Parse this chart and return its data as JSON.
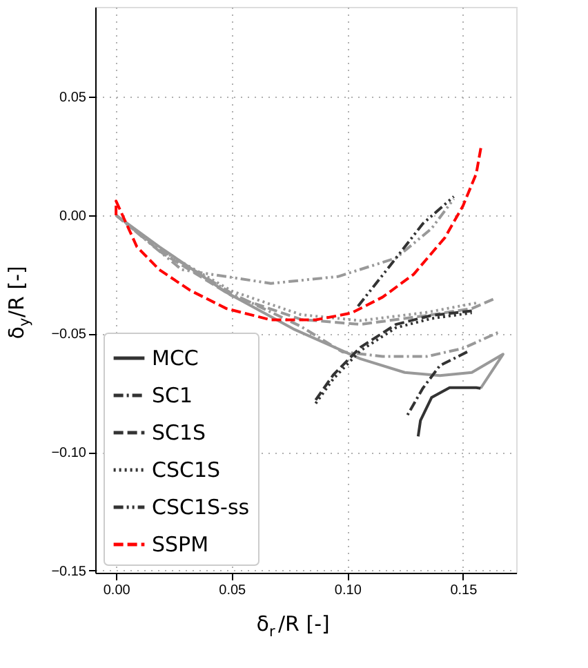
{
  "chart_data": {
    "type": "line",
    "xlabel": "δ$_{r}$/R [-]",
    "ylabel": "δ$_{y}$/R [-]",
    "xlim": [
      -0.009,
      0.173
    ],
    "ylim": [
      -0.151,
      0.088
    ],
    "xticks": [
      {
        "value": 0.0,
        "label": "0.00"
      },
      0.05,
      {
        "value": 0.1,
        "label": "0.10"
      },
      0.15
    ],
    "yticks": [
      {
        "value": -0.15,
        "label": "−0.15"
      },
      {
        "value": -0.1,
        "label": "−0.10"
      },
      {
        "value": -0.05,
        "label": "−0.05"
      },
      {
        "value": 0.0,
        "label": "0.00"
      },
      0.05
    ],
    "grid": true,
    "legend": "bottom left",
    "marker": "none",
    "series": [
      {
        "color": "#999999",
        "line_style": "solid",
        "x": [
          0.0,
          0.0187,
          0.0477,
          0.0766,
          0.1056,
          0.1248,
          0.14,
          0.1538,
          0.1673,
          0.1576
        ],
        "values": [
          0.0,
          -0.0133,
          -0.0326,
          -0.048,
          -0.0606,
          -0.0664,
          -0.0677,
          -0.0664,
          -0.0587,
          -0.0731
        ]
      },
      {
        "color": "#999999",
        "line_style": "dashdot",
        "x": [
          0.0,
          0.02,
          0.05,
          0.08,
          0.0978,
          0.1152,
          0.1345,
          0.15,
          0.1663
        ],
        "values": [
          0.0,
          -0.015,
          -0.033,
          -0.047,
          -0.0577,
          -0.0596,
          -0.0596,
          -0.0562,
          -0.049
        ]
      },
      {
        "color": "#999999",
        "line_style": "dashed",
        "x": [
          0.0,
          0.02,
          0.05,
          0.08,
          0.1056,
          0.1345,
          0.1538,
          0.1644
        ],
        "values": [
          0.0,
          -0.016,
          -0.034,
          -0.044,
          -0.0461,
          -0.0423,
          -0.0394,
          -0.0349
        ]
      },
      {
        "color": "#999999",
        "line_style": "dotted",
        "x": [
          0.0,
          0.02,
          0.05,
          0.08,
          0.1056,
          0.1345,
          0.156
        ],
        "values": [
          0.0,
          -0.015,
          -0.032,
          -0.042,
          -0.0445,
          -0.041,
          -0.037
        ]
      },
      {
        "color": "#999999",
        "line_style": "dashdotdot",
        "x": [
          0.0,
          0.0284,
          0.0669,
          0.0959,
          0.121,
          0.1364,
          0.146
        ],
        "values": [
          0.0,
          -0.023,
          -0.0288,
          -0.0259,
          -0.0181,
          -0.0056,
          0.0069
        ]
      },
      {
        "name": "MCC",
        "color": "#333333",
        "line_style": "solid",
        "x": [
          0.1576,
          0.1557,
          0.1442,
          0.1364,
          0.1316,
          0.1306
        ],
        "values": [
          -0.0731,
          -0.0728,
          -0.0728,
          -0.077,
          -0.0867,
          -0.0934
        ]
      },
      {
        "name": "SC1",
        "color": "#333333",
        "line_style": "dashdot",
        "x": [
          0.1518,
          0.14,
          0.1326,
          0.1258
        ],
        "values": [
          -0.0577,
          -0.0635,
          -0.0731,
          -0.0847
        ]
      },
      {
        "name": "SC1S",
        "color": "#333333",
        "line_style": "dashed",
        "x": [
          0.0863,
          0.094,
          0.1056,
          0.121,
          0.1364,
          0.1538
        ],
        "values": [
          -0.078,
          -0.0673,
          -0.0558,
          -0.0461,
          -0.0423,
          -0.0404
        ]
      },
      {
        "name": "CSC1S",
        "color": "#333333",
        "line_style": "dotted",
        "x": [
          0.0863,
          0.094,
          0.1056,
          0.121,
          0.1364,
          0.1538
        ],
        "values": [
          -0.0795,
          -0.069,
          -0.0572,
          -0.0475,
          -0.0436,
          -0.0412
        ]
      },
      {
        "name": "CSC1S-ss",
        "color": "#333333",
        "line_style": "dashdotdot",
        "x": [
          0.1046,
          0.1171,
          0.1326,
          0.146
        ],
        "values": [
          -0.0384,
          -0.023,
          -0.0036,
          0.0079
        ]
      },
      {
        "name": "SSPM",
        "color": "#ff0000",
        "line_style": "dashed",
        "x": [
          0.0,
          0.0,
          0.009,
          0.0187,
          0.032,
          0.0477,
          0.0669,
          0.0863,
          0.1017,
          0.1152,
          0.1287,
          0.1422,
          0.15,
          0.1557,
          0.158
        ],
        "values": [
          0.0,
          0.006,
          -0.0133,
          -0.023,
          -0.0317,
          -0.0394,
          -0.0442,
          -0.0442,
          -0.0413,
          -0.0346,
          -0.0249,
          -0.0094,
          0.004,
          0.0175,
          0.03
        ]
      }
    ]
  }
}
